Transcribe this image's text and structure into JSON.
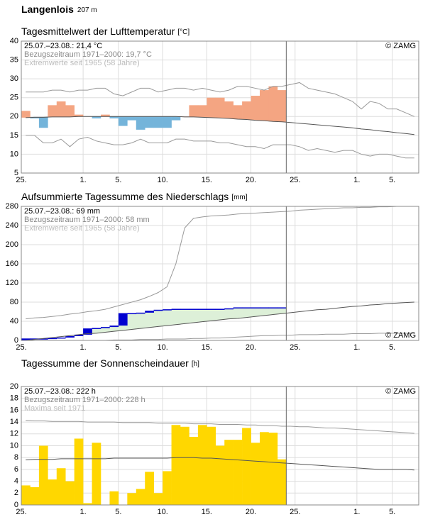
{
  "header": {
    "title": "Langenlois",
    "elevation": "207 m"
  },
  "chart_data": [
    {
      "type": "anomaly",
      "title": "Tagesmittelwert der Lufttemperatur",
      "unit": "[°C]",
      "notes": [
        "25.07.–23.08.: 21,4 °C",
        "Bezugszeitraum 1971–2000: 19,7 °C",
        "Extremwerte seit 1965 (58 Jahre)"
      ],
      "credit": "© ZAMG",
      "credit_corner": "upper right",
      "categories": [
        "25.",
        null,
        null,
        null,
        null,
        null,
        null,
        "1.",
        null,
        null,
        null,
        "5.",
        null,
        null,
        null,
        null,
        "10.",
        null,
        null,
        null,
        null,
        "15.",
        null,
        null,
        null,
        null,
        "20.",
        null,
        null,
        null,
        null,
        "25.",
        null,
        null,
        null,
        null,
        null,
        null,
        "1.",
        null,
        null,
        null,
        "5.",
        null,
        null
      ],
      "ylim": [
        5,
        40
      ],
      "yticks": [
        5,
        10,
        15,
        20,
        25,
        30,
        35,
        40
      ],
      "grid": true,
      "above_color": "#f4a582",
      "below_color": "#74b4da",
      "series": [
        {
          "style": "anomaly",
          "values": [
            21.5,
            19.5,
            17,
            23,
            24,
            23,
            20.5,
            20,
            19.5,
            20.5,
            19.5,
            17.5,
            19,
            16.5,
            17,
            17,
            17,
            19,
            20,
            23,
            23,
            25,
            25,
            24,
            23,
            24,
            25.5,
            27,
            28,
            27,
            null,
            null,
            null,
            null,
            null,
            null,
            null,
            null,
            null,
            null,
            null,
            null,
            null,
            null,
            null
          ]
        },
        {
          "style": "line",
          "color": "#555555",
          "values": [
            19.7,
            19.8,
            19.8,
            19.9,
            19.9,
            19.9,
            20,
            20,
            20,
            20,
            20,
            20,
            20,
            20,
            20,
            20,
            20,
            20,
            19.9,
            19.9,
            19.8,
            19.7,
            19.6,
            19.5,
            19.3,
            19.2,
            19,
            18.9,
            18.7,
            18.6,
            18.4,
            18.2,
            18,
            17.8,
            17.6,
            17.4,
            17.2,
            17,
            16.7,
            16.5,
            16.2,
            16,
            15.7,
            15.5,
            15.2
          ]
        },
        {
          "style": "line",
          "color": "#999999",
          "values": [
            26.5,
            26.5,
            26.5,
            27,
            27,
            26.5,
            27,
            27,
            27.5,
            27.5,
            26,
            25.5,
            26.5,
            27.5,
            27.5,
            26.5,
            27,
            27.5,
            27.5,
            27,
            27.5,
            27,
            26.5,
            27,
            28,
            28,
            27.5,
            27,
            28,
            28,
            28.5,
            29,
            27.5,
            27,
            26.5,
            26,
            25,
            24,
            22,
            24,
            23.5,
            22,
            22,
            21,
            20
          ]
        },
        {
          "style": "line",
          "color": "#999999",
          "values": [
            15,
            15,
            13,
            13,
            14,
            12,
            14,
            14.5,
            13.5,
            13,
            12.5,
            12.5,
            13,
            14,
            13,
            13,
            13,
            14,
            14,
            13.5,
            13.5,
            13.5,
            13,
            13,
            12.5,
            12,
            12,
            11.5,
            12.5,
            12.5,
            12.5,
            12,
            11,
            11.5,
            11,
            10.5,
            11,
            11,
            10,
            9.5,
            10,
            10,
            9.5,
            9,
            9
          ]
        }
      ]
    },
    {
      "type": "cumulative",
      "title": "Aufsummierte Tagessumme des Niederschlags",
      "unit": "[mm]",
      "notes": [
        "25.07.–23.08.: 69 mm",
        "Bezugszeitraum 1971–2000: 58 mm",
        "Extremwerte seit 1965 (58 Jahre)"
      ],
      "credit": "© ZAMG",
      "credit_corner": "lower right",
      "categories": [
        "25.",
        null,
        null,
        null,
        null,
        null,
        null,
        "1.",
        null,
        null,
        null,
        "5.",
        null,
        null,
        null,
        null,
        "10.",
        null,
        null,
        null,
        null,
        "15.",
        null,
        null,
        null,
        null,
        "20.",
        null,
        null,
        null,
        null,
        "25.",
        null,
        null,
        null,
        null,
        null,
        null,
        "1.",
        null,
        null,
        null,
        "5.",
        null,
        null
      ],
      "ylim": [
        0,
        280
      ],
      "yticks": [
        0,
        40,
        80,
        120,
        160,
        200,
        240,
        280
      ],
      "grid": true,
      "fill_color": "#ddf0d8",
      "series": [
        {
          "style": "cumulative",
          "color": "#0000d0",
          "values": [
            4,
            4,
            4,
            5,
            6,
            9,
            12,
            25,
            26,
            28,
            31,
            57,
            57,
            58,
            62,
            64,
            65,
            66,
            66,
            66,
            66,
            66,
            66,
            67,
            69,
            69,
            69,
            69,
            69,
            69,
            null,
            null,
            null,
            null,
            null,
            null,
            null,
            null,
            null,
            null,
            null,
            null,
            null,
            null,
            null
          ]
        },
        {
          "style": "line",
          "color": "#555555",
          "values": [
            0,
            2,
            4,
            6,
            8,
            10,
            12,
            14,
            15,
            17,
            19,
            21,
            23,
            25,
            27,
            29,
            31,
            33,
            35,
            37,
            39,
            41,
            43,
            45,
            46,
            48,
            50,
            52,
            54,
            56,
            58,
            60,
            62,
            64,
            65,
            67,
            69,
            71,
            72,
            74,
            75,
            77,
            78,
            79,
            80
          ]
        },
        {
          "style": "line",
          "color": "#999999",
          "values": [
            45,
            47,
            48,
            50,
            52,
            55,
            57,
            60,
            62,
            65,
            70,
            75,
            80,
            85,
            92,
            100,
            112,
            160,
            235,
            255,
            258,
            260,
            261,
            262,
            264,
            265,
            266,
            267,
            268,
            269,
            270,
            272,
            273,
            274,
            275,
            276,
            277,
            277,
            278,
            278,
            279,
            279,
            280,
            280,
            280
          ]
        },
        {
          "style": "line",
          "color": "#999999",
          "values": [
            0,
            0,
            0,
            0,
            0,
            0,
            0,
            0,
            0,
            0,
            1,
            1,
            1,
            2,
            2,
            2,
            3,
            3,
            3,
            4,
            4,
            5,
            5,
            6,
            7,
            8,
            9,
            10,
            10,
            11,
            11,
            12,
            12,
            12,
            13,
            13,
            13,
            14,
            14,
            14,
            15,
            15,
            15,
            15,
            15
          ]
        }
      ]
    },
    {
      "type": "bar",
      "title": "Tagessumme der Sonnenscheindauer",
      "unit": "[h]",
      "notes": [
        "25.07.–23.08.: 222 h",
        "Bezugszeitraum 1971–2000: 228 h",
        "Maxima seit 1971"
      ],
      "credit": "© ZAMG",
      "credit_corner": "upper right",
      "categories": [
        "25.",
        null,
        null,
        null,
        null,
        null,
        null,
        "1.",
        null,
        null,
        null,
        "5.",
        null,
        null,
        null,
        null,
        "10.",
        null,
        null,
        null,
        null,
        "15.",
        null,
        null,
        null,
        null,
        "20.",
        null,
        null,
        null,
        null,
        "25.",
        null,
        null,
        null,
        null,
        null,
        null,
        "1.",
        null,
        null,
        null,
        "5.",
        null,
        null
      ],
      "ylim": [
        0,
        20
      ],
      "yticks": [
        0,
        2,
        4,
        6,
        8,
        10,
        12,
        14,
        16,
        18,
        20
      ],
      "grid": true,
      "series": [
        {
          "style": "bar",
          "color": "#ffd700",
          "values": [
            3.3,
            3,
            10,
            4.3,
            6.2,
            4,
            11.2,
            0.3,
            10.5,
            0,
            2.3,
            0,
            2,
            2.7,
            5.6,
            2,
            5.7,
            13.5,
            13.2,
            11.5,
            13.5,
            13.2,
            10,
            11,
            11,
            13,
            10.5,
            12.3,
            12.2,
            7.7,
            null,
            null,
            null,
            null,
            null,
            null,
            null,
            null,
            null,
            null,
            null,
            null,
            null,
            null,
            null
          ]
        },
        {
          "style": "line",
          "color": "#555555",
          "values": [
            7.6,
            7.7,
            7.7,
            7.7,
            7.8,
            7.8,
            7.8,
            7.8,
            7.8,
            7.8,
            7.9,
            7.9,
            7.9,
            7.9,
            7.9,
            7.9,
            7.9,
            8,
            8,
            8,
            7.9,
            7.9,
            7.8,
            7.7,
            7.6,
            7.5,
            7.4,
            7.3,
            7.2,
            7.1,
            7,
            6.9,
            6.8,
            6.7,
            6.6,
            6.5,
            6.4,
            6.3,
            6.2,
            6.1,
            6,
            6,
            6,
            6,
            5.9
          ]
        },
        {
          "style": "line",
          "color": "#999999",
          "values": [
            14.3,
            14.2,
            14.2,
            14.1,
            14.1,
            14.1,
            14.1,
            14,
            14,
            14,
            14,
            13.9,
            13.9,
            13.9,
            13.9,
            13.8,
            13.8,
            13.8,
            13.8,
            13.7,
            13.7,
            13.7,
            13.6,
            13.6,
            13.6,
            13.5,
            13.5,
            13.4,
            13.4,
            13.3,
            13.3,
            13.2,
            13.2,
            13.1,
            13,
            13,
            12.9,
            12.8,
            12.7,
            12.6,
            12.5,
            12.4,
            12.3,
            12.2,
            12.1
          ]
        }
      ]
    }
  ]
}
